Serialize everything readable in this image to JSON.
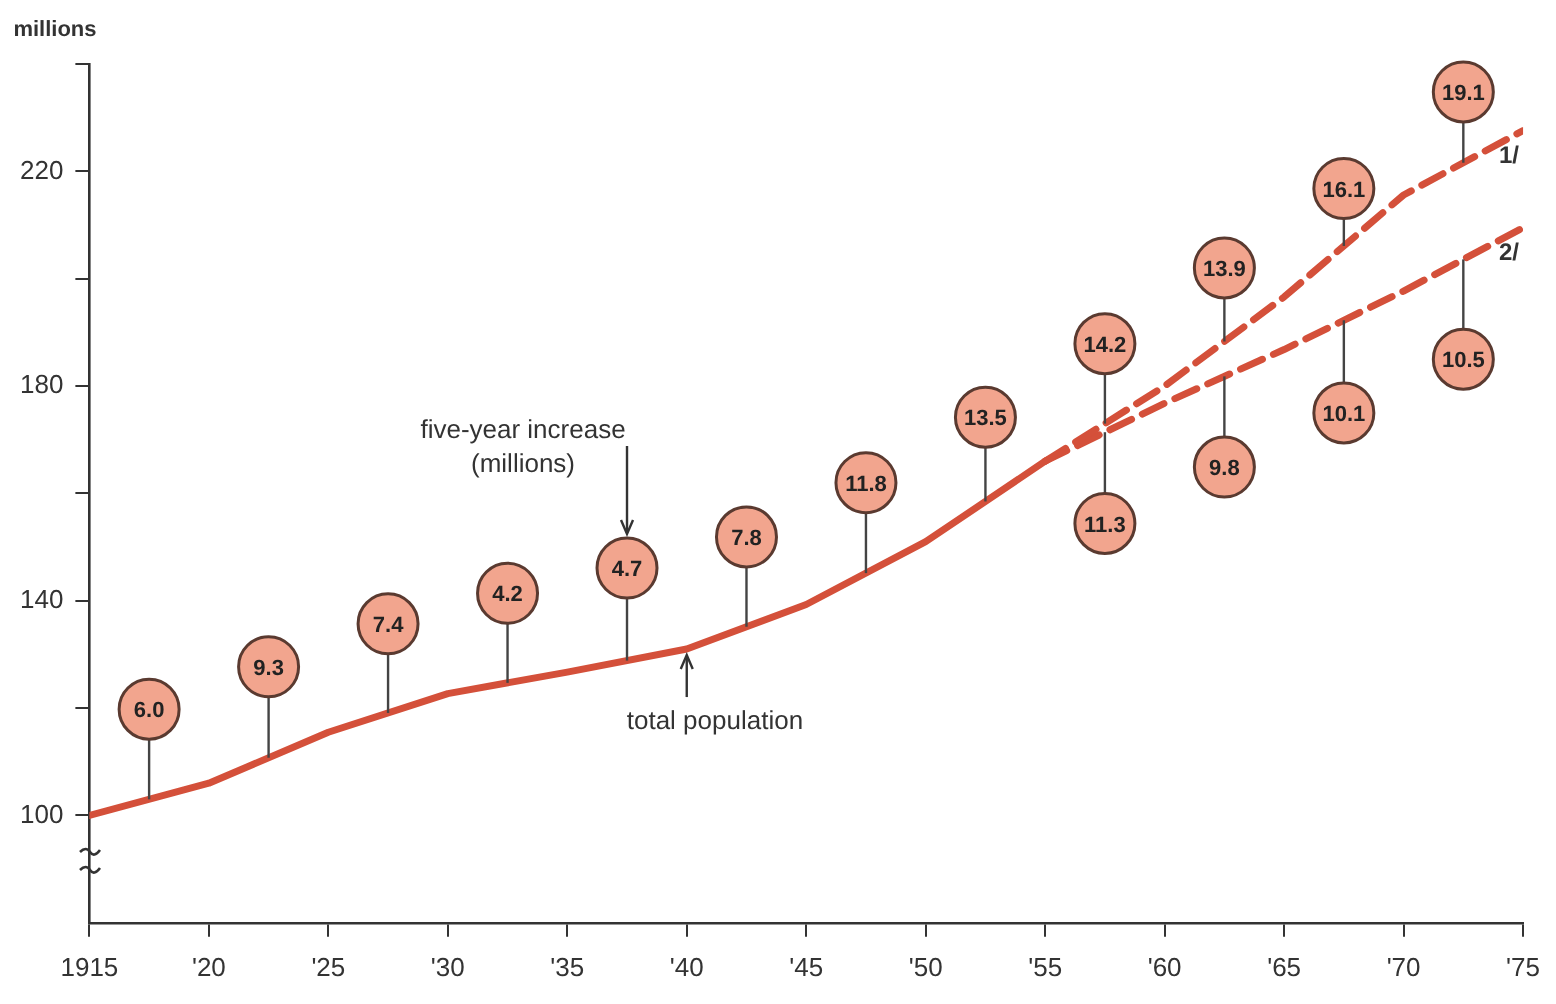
{
  "chart_data": {
    "type": "line",
    "ylabel": "millions",
    "xlim": [
      1915,
      1975
    ],
    "xticks": [
      1915,
      {
        "value": 1920,
        "label": "'20"
      },
      {
        "value": 1925,
        "label": "'25"
      },
      {
        "value": 1930,
        "label": "'30"
      },
      {
        "value": 1935,
        "label": "'35"
      },
      {
        "value": 1940,
        "label": "'40"
      },
      {
        "value": 1945,
        "label": "'45"
      },
      {
        "value": 1950,
        "label": "'50"
      },
      {
        "value": 1955,
        "label": "'55"
      },
      {
        "value": 1960,
        "label": "'60"
      },
      {
        "value": 1965,
        "label": "'65"
      },
      {
        "value": 1970,
        "label": "'70"
      },
      {
        "value": 1975,
        "label": "'75"
      }
    ],
    "ylim": [
      80,
      240
    ],
    "yticks": [
      100,
      {
        "value": 120,
        "label": null
      },
      140,
      {
        "value": 160,
        "label": null
      },
      180,
      {
        "value": 200,
        "label": null
      },
      220,
      {
        "value": 240,
        "label": null
      }
    ],
    "grid": false,
    "legend": false,
    "series": [
      {
        "color": "#d4503a",
        "line_style": "solid",
        "x": [
          1915,
          1920,
          1925,
          1930,
          1935,
          1940,
          1945,
          1950,
          1955
        ],
        "values": [
          100,
          106,
          115.5,
          122.7,
          126.7,
          131,
          139.3,
          151,
          166
        ]
      },
      {
        "name": "1/",
        "color": "#d4503a",
        "line_style": "dashed",
        "x": [
          1955,
          1960,
          1965,
          1970,
          1975
        ],
        "values": [
          166,
          180,
          196.6,
          215.6,
          227.6
        ]
      },
      {
        "name": "2/",
        "color": "#d4503a",
        "line_style": "dashed",
        "x": [
          1955,
          1960,
          1965,
          1970,
          1975
        ],
        "values": [
          166,
          176.8,
          186.8,
          197.7,
          209.5
        ]
      }
    ],
    "annotations": [
      {
        "text": "6.0",
        "x": 1917.5,
        "y": 119.8
      },
      {
        "text": "9.3",
        "x": 1922.5,
        "y": 127.7
      },
      {
        "text": "7.4",
        "x": 1927.5,
        "y": 135.7
      },
      {
        "text": "4.2",
        "x": 1932.5,
        "y": 141.4
      },
      {
        "text": "4.7",
        "x": 1937.5,
        "y": 146.1
      },
      "five-year increase (millions)",
      {
        "text": "7.8",
        "x": 1942.5,
        "y": 151.9
      },
      {
        "text": "11.8",
        "x": 1947.5,
        "y": 162
      },
      {
        "text": "13.5",
        "x": 1952.5,
        "y": 174.2
      },
      {
        "text": "14.2",
        "x": 1957.5,
        "y": 187.9
      },
      {
        "text": "11.3",
        "x": 1957.5,
        "y": 154.4
      },
      {
        "text": "13.9",
        "x": 1962.5,
        "y": 202
      },
      {
        "text": "9.8",
        "x": 1962.5,
        "y": 164.9
      },
      {
        "text": "16.1",
        "x": 1967.5,
        "y": 216.8
      },
      {
        "text": "10.1",
        "x": 1967.5,
        "y": 175
      },
      {
        "text": "19.1",
        "x": 1972.5,
        "y": 234.8
      },
      {
        "text": "10.5",
        "x": 1972.5,
        "y": 185
      },
      {
        "text": "total population",
        "x": 1940,
        "y": 131
      }
    ]
  }
}
